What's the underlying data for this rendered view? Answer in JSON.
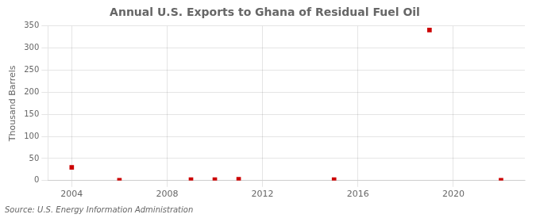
{
  "chart_data": {
    "type": "scatter",
    "title": "Annual U.S. Exports to Ghana of Residual Fuel Oil",
    "ylabel": "Thousand Barrels",
    "annotation": "Source: U.S. Energy Information Administration",
    "x": [
      2004,
      2006,
      2009,
      2010,
      2011,
      2015,
      2019,
      2022
    ],
    "values": [
      30,
      1,
      2,
      2,
      3,
      2,
      341,
      1
    ],
    "color": "#cc0000",
    "marker": "square",
    "xlim": [
      2003,
      2023
    ],
    "xticks": [
      2004,
      2008,
      2012,
      2016,
      2020
    ],
    "ylim": [
      0,
      350
    ],
    "yticks": [
      0,
      50,
      100,
      150,
      200,
      250,
      300,
      350
    ],
    "grid": true
  }
}
